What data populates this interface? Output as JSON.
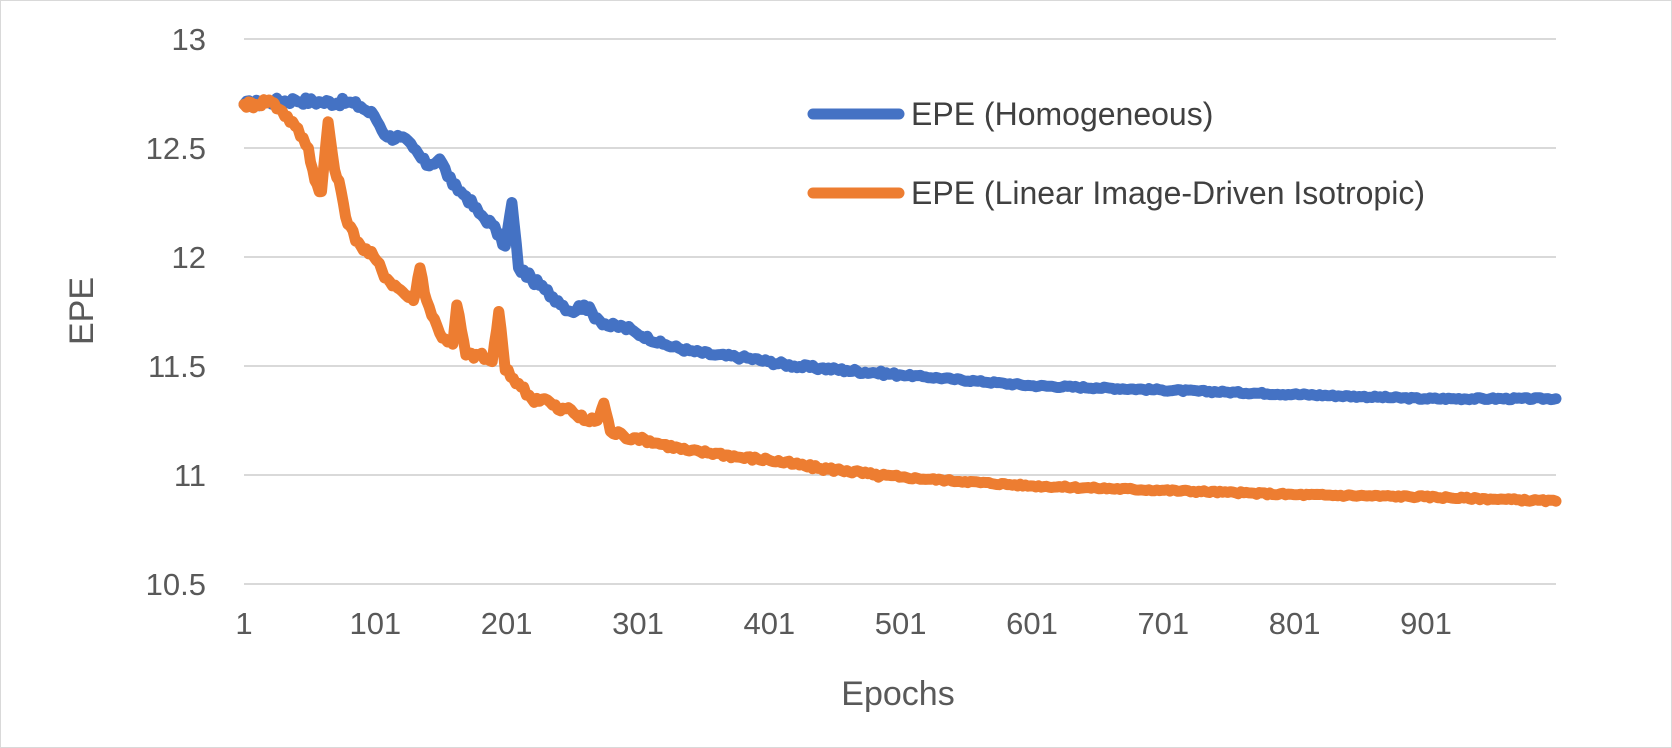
{
  "chart_data": {
    "type": "line",
    "xlabel": "Epochs",
    "ylabel": "EPE",
    "xlim": [
      1,
      1000
    ],
    "ylim": [
      10.5,
      13
    ],
    "x_ticks": [
      "1",
      "101",
      "201",
      "301",
      "401",
      "501",
      "601",
      "701",
      "801",
      "901"
    ],
    "x_tick_values": [
      1,
      101,
      201,
      301,
      401,
      501,
      601,
      701,
      801,
      901
    ],
    "y_ticks": [
      "10.5",
      "11",
      "11.5",
      "12",
      "12.5",
      "13"
    ],
    "y_tick_values": [
      10.5,
      11,
      11.5,
      12,
      12.5,
      13
    ],
    "grid": true,
    "legend_position": "top-right",
    "series": [
      {
        "name": "EPE (Homogeneous)",
        "color": "#4472C4",
        "x": [
          1,
          20,
          40,
          60,
          80,
          90,
          100,
          110,
          120,
          130,
          140,
          150,
          160,
          170,
          180,
          190,
          200,
          205,
          210,
          220,
          230,
          240,
          250,
          260,
          270,
          280,
          290,
          300,
          320,
          340,
          360,
          380,
          400,
          420,
          440,
          460,
          480,
          500,
          520,
          540,
          560,
          580,
          600,
          650,
          700,
          750,
          800,
          850,
          900,
          950,
          1000
        ],
        "y": [
          12.7,
          12.71,
          12.72,
          12.71,
          12.71,
          12.69,
          12.65,
          12.55,
          12.55,
          12.5,
          12.42,
          12.45,
          12.33,
          12.28,
          12.2,
          12.15,
          12.05,
          12.25,
          11.95,
          11.9,
          11.85,
          11.8,
          11.75,
          11.78,
          11.72,
          11.68,
          11.68,
          11.65,
          11.6,
          11.57,
          11.55,
          11.54,
          11.52,
          11.5,
          11.49,
          11.48,
          11.47,
          11.46,
          11.45,
          11.44,
          11.43,
          11.42,
          11.41,
          11.4,
          11.39,
          11.38,
          11.37,
          11.36,
          11.35,
          11.35,
          11.35
        ]
      },
      {
        "name": "EPE (Linear Image-Driven Isotropic)",
        "color": "#ED7D31",
        "x": [
          1,
          10,
          20,
          30,
          40,
          50,
          55,
          60,
          65,
          70,
          75,
          80,
          90,
          100,
          110,
          120,
          130,
          135,
          140,
          150,
          160,
          163,
          170,
          180,
          190,
          195,
          200,
          210,
          220,
          230,
          240,
          250,
          260,
          270,
          275,
          280,
          290,
          300,
          320,
          340,
          360,
          380,
          400,
          420,
          440,
          460,
          480,
          500,
          550,
          600,
          650,
          700,
          750,
          800,
          850,
          900,
          950,
          1000
        ],
        "y": [
          12.7,
          12.7,
          12.72,
          12.67,
          12.6,
          12.5,
          12.35,
          12.3,
          12.62,
          12.4,
          12.3,
          12.15,
          12.05,
          12.0,
          11.9,
          11.85,
          11.8,
          11.95,
          11.8,
          11.65,
          11.6,
          11.78,
          11.55,
          11.55,
          11.52,
          11.75,
          11.48,
          11.42,
          11.35,
          11.35,
          11.3,
          11.3,
          11.25,
          11.25,
          11.33,
          11.2,
          11.18,
          11.17,
          11.14,
          11.11,
          11.1,
          11.08,
          11.07,
          11.05,
          11.03,
          11.02,
          11.0,
          10.99,
          10.97,
          10.95,
          10.94,
          10.93,
          10.92,
          10.91,
          10.905,
          10.9,
          10.89,
          10.88
        ]
      }
    ]
  }
}
